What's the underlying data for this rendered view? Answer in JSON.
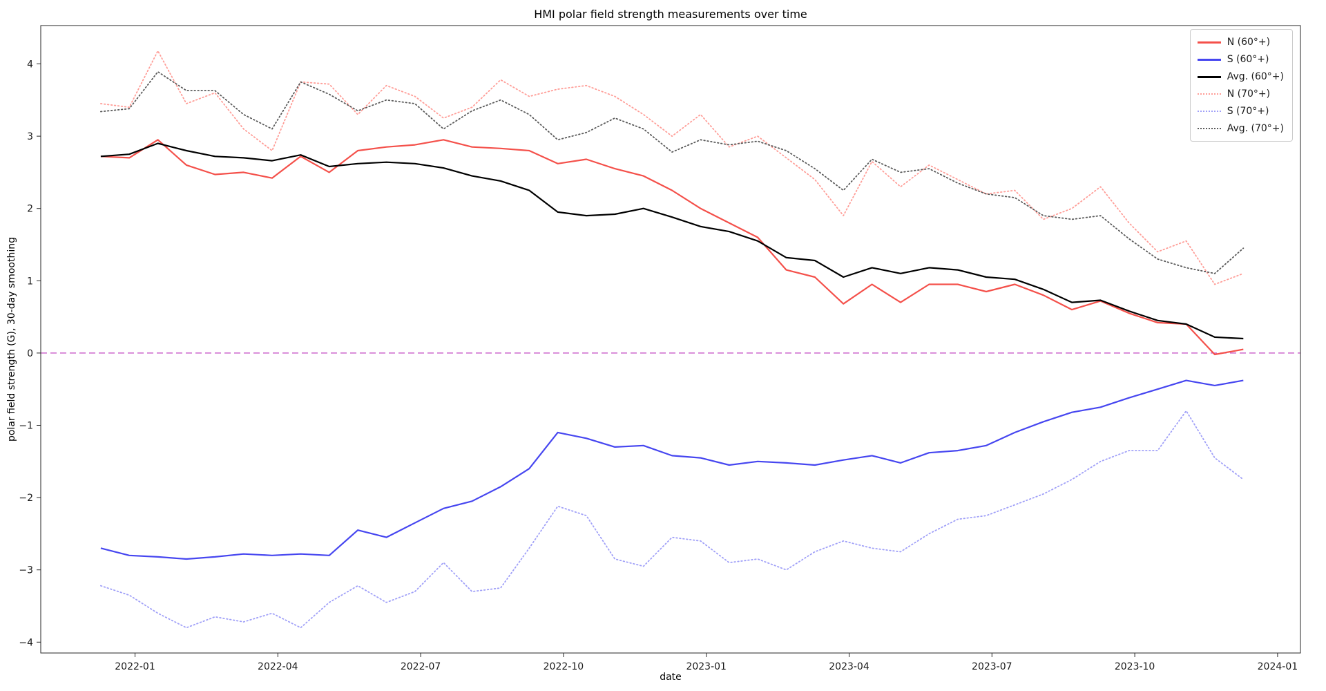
{
  "figure": {
    "background": "#ffffff",
    "frame_color": "#262626"
  },
  "chart_data": {
    "type": "line",
    "title": "HMI polar field strength measurements over time",
    "xlabel": "date",
    "ylabel": "polar field strength (G), 30-day smoothing",
    "xlim": [
      2021.835,
      2024.04
    ],
    "ylim": [
      -4.15,
      4.53
    ],
    "grid": false,
    "legend_position": "upper right",
    "x_ticks": {
      "values": [
        2022.0,
        2022.25,
        2022.5,
        2022.75,
        2023.0,
        2023.25,
        2023.5,
        2023.75,
        2024.0
      ],
      "labels": [
        "2022-01",
        "2022-04",
        "2022-07",
        "2022-10",
        "2023-01",
        "2023-04",
        "2023-07",
        "2023-10",
        "2024-01"
      ]
    },
    "y_ticks": {
      "values": [
        -4,
        -3,
        -2,
        -1,
        0,
        1,
        2,
        3,
        4
      ],
      "labels": [
        "−4",
        "−3",
        "−2",
        "−1",
        "0",
        "1",
        "2",
        "3",
        "4"
      ]
    },
    "zero_line": {
      "y": 0,
      "color": "#cc66cc",
      "style": "dashed"
    },
    "x": [
      2021.94,
      2021.99,
      2022.04,
      2022.09,
      2022.14,
      2022.19,
      2022.24,
      2022.29,
      2022.34,
      2022.39,
      2022.44,
      2022.49,
      2022.54,
      2022.59,
      2022.64,
      2022.69,
      2022.74,
      2022.79,
      2022.84,
      2022.89,
      2022.94,
      2022.99,
      2023.04,
      2023.09,
      2023.14,
      2023.19,
      2023.24,
      2023.29,
      2023.34,
      2023.39,
      2023.44,
      2023.49,
      2023.54,
      2023.59,
      2023.64,
      2023.69,
      2023.74,
      2023.79,
      2023.84,
      2023.89,
      2023.94
    ],
    "series": [
      {
        "name": "N (60°+)",
        "color": "#f4504a",
        "style": "solid",
        "width": 2.2,
        "values": [
          2.72,
          2.7,
          2.95,
          2.6,
          2.47,
          2.5,
          2.42,
          2.72,
          2.5,
          2.8,
          2.85,
          2.88,
          2.95,
          2.85,
          2.83,
          2.8,
          2.62,
          2.68,
          2.55,
          2.45,
          2.25,
          2.0,
          1.8,
          1.6,
          1.15,
          1.05,
          0.68,
          0.95,
          0.7,
          0.95,
          0.95,
          0.85,
          0.95,
          0.8,
          0.6,
          0.72,
          0.55,
          0.42,
          0.4,
          -0.02,
          0.05
        ]
      },
      {
        "name": "S (60°+)",
        "color": "#4646f0",
        "style": "solid",
        "width": 2.2,
        "values": [
          -2.7,
          -2.8,
          -2.82,
          -2.85,
          -2.82,
          -2.78,
          -2.8,
          -2.78,
          -2.8,
          -2.45,
          -2.55,
          -2.35,
          -2.15,
          -2.05,
          -1.85,
          -1.6,
          -1.1,
          -1.18,
          -1.3,
          -1.28,
          -1.42,
          -1.45,
          -1.55,
          -1.5,
          -1.52,
          -1.55,
          -1.48,
          -1.42,
          -1.52,
          -1.38,
          -1.35,
          -1.28,
          -1.1,
          -0.95,
          -0.82,
          -0.75,
          -0.62,
          -0.5,
          -0.38,
          -0.45,
          -0.38
        ]
      },
      {
        "name": "Avg. (60°+)",
        "color": "#000000",
        "style": "solid",
        "width": 2.2,
        "values": [
          2.72,
          2.75,
          2.9,
          2.8,
          2.72,
          2.7,
          2.66,
          2.74,
          2.58,
          2.62,
          2.64,
          2.62,
          2.56,
          2.45,
          2.38,
          2.25,
          1.95,
          1.9,
          1.92,
          2.0,
          1.88,
          1.75,
          1.68,
          1.55,
          1.32,
          1.28,
          1.05,
          1.18,
          1.1,
          1.18,
          1.15,
          1.05,
          1.02,
          0.88,
          0.7,
          0.73,
          0.58,
          0.45,
          0.4,
          0.22,
          0.2
        ]
      },
      {
        "name": "N (70°+)",
        "color": "#ff9d97",
        "style": "dotted",
        "width": 1.8,
        "values": [
          3.45,
          3.4,
          4.18,
          3.45,
          3.6,
          3.1,
          2.8,
          3.75,
          3.72,
          3.3,
          3.7,
          3.55,
          3.25,
          3.4,
          3.78,
          3.55,
          3.65,
          3.7,
          3.55,
          3.3,
          3.0,
          3.3,
          2.85,
          3.0,
          2.7,
          2.4,
          1.9,
          2.65,
          2.3,
          2.6,
          2.4,
          2.2,
          2.25,
          1.85,
          2.0,
          2.3,
          1.8,
          1.4,
          1.55,
          0.95,
          1.1
        ]
      },
      {
        "name": "S (70°+)",
        "color": "#a0a0f8",
        "style": "dotted",
        "width": 1.8,
        "values": [
          -3.22,
          -3.35,
          -3.6,
          -3.8,
          -3.65,
          -3.72,
          -3.6,
          -3.8,
          -3.45,
          -3.22,
          -3.45,
          -3.3,
          -2.9,
          -3.3,
          -3.25,
          -2.7,
          -2.12,
          -2.25,
          -2.85,
          -2.95,
          -2.55,
          -2.6,
          -2.9,
          -2.85,
          -3.0,
          -2.75,
          -2.6,
          -2.7,
          -2.75,
          -2.5,
          -2.3,
          -2.25,
          -2.1,
          -1.95,
          -1.75,
          -1.5,
          -1.35,
          -1.35,
          -0.8,
          -1.45,
          -1.75
        ]
      },
      {
        "name": "Avg. (70°+)",
        "color": "#5a5a5a",
        "style": "dotted",
        "width": 1.8,
        "values": [
          3.34,
          3.38,
          3.89,
          3.63,
          3.63,
          3.3,
          3.1,
          3.75,
          3.58,
          3.35,
          3.5,
          3.45,
          3.1,
          3.35,
          3.5,
          3.3,
          2.95,
          3.05,
          3.25,
          3.1,
          2.78,
          2.95,
          2.88,
          2.93,
          2.8,
          2.55,
          2.25,
          2.68,
          2.5,
          2.55,
          2.35,
          2.2,
          2.15,
          1.9,
          1.85,
          1.9,
          1.58,
          1.3,
          1.18,
          1.1,
          1.45
        ]
      }
    ]
  }
}
